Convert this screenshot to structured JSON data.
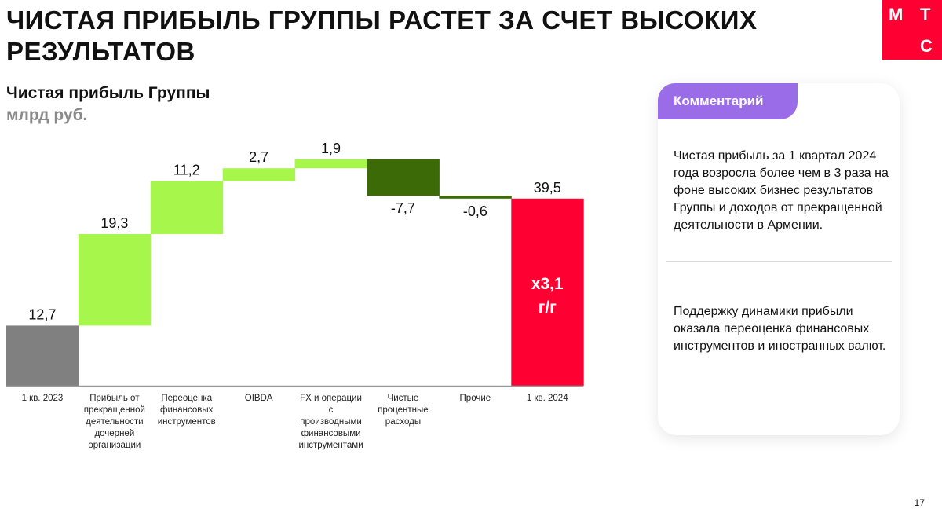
{
  "title": "ЧИСТАЯ ПРИБЫЛЬ ГРУППЫ РАСТЕТ ЗА СЧЕТ ВЫСОКИХ РЕЗУЛЬТАТОВ",
  "logo": {
    "letters": [
      "М",
      "Т",
      "С"
    ],
    "color": "#ff0032"
  },
  "comment": {
    "badge": "Комментарий",
    "paragraph1": "Чистая прибыль за 1 квартал 2024 года возросла более чем в 3 раза на фоне высоких бизнес результатов Группы и доходов от прекращенной деятельности в Армении.",
    "paragraph2": "Поддержку динамики прибыли оказала переоценка финансовых инструментов и иностранных валют."
  },
  "page_number": "17",
  "chart_data": {
    "type": "waterfall",
    "title": "Чистая прибыль Группы",
    "subtitle": "млрд руб.",
    "ylim": [
      0,
      48
    ],
    "colors": {
      "total_start": "#808080",
      "increase": "#a6f64b",
      "decrease": "#3c6a06",
      "total_end": "#ff0032"
    },
    "steps": [
      {
        "category": "1 кв. 2023",
        "value": 12.7,
        "label": "12,7",
        "kind": "total_start"
      },
      {
        "category": "Прибыль от\nпрекращенной\nдеятельности\nдочерней\nорганизации",
        "value": 19.3,
        "label": "19,3",
        "kind": "increase"
      },
      {
        "category": "Переоценка\nфинансовых\nинструментов",
        "value": 11.2,
        "label": "11,2",
        "kind": "increase"
      },
      {
        "category": "OIBDA",
        "value": 2.7,
        "label": "2,7",
        "kind": "increase"
      },
      {
        "category": "FX и операции\nс\nпроизводными\nфинансовыми\nинструментами",
        "value": 1.9,
        "label": "1,9",
        "kind": "increase"
      },
      {
        "category": "Чистые\nпроцентные\nрасходы",
        "value": -7.7,
        "label": "-7,7",
        "kind": "decrease"
      },
      {
        "category": "Прочие",
        "value": -0.6,
        "label": "-0,6",
        "kind": "decrease"
      },
      {
        "category": "1 кв. 2024",
        "value": 39.5,
        "label": "39,5",
        "kind": "total_end"
      }
    ],
    "annotation": [
      "x3,1",
      "г/г"
    ]
  }
}
